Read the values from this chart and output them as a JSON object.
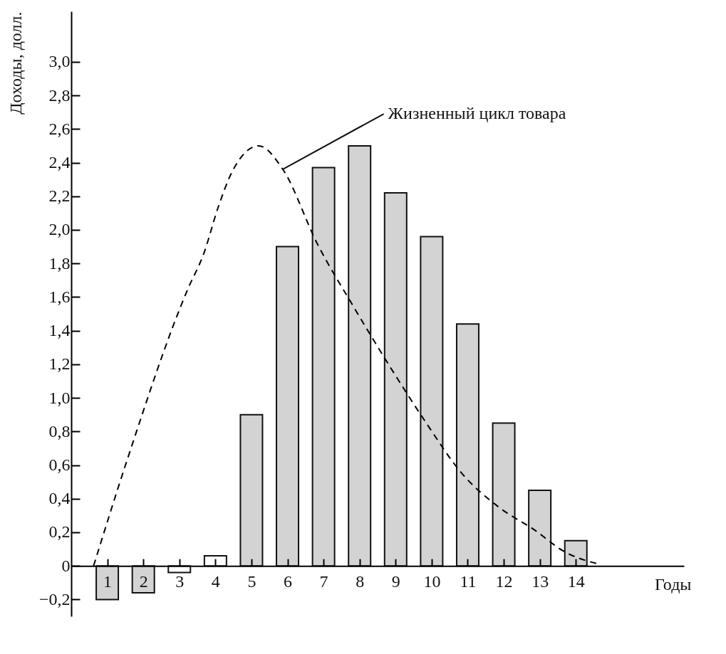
{
  "chart_data": {
    "type": "bar",
    "ylabel": "Доходы, долл.",
    "xlabel": "Годы",
    "xlim": [
      0,
      17
    ],
    "xticks": [
      1,
      2,
      3,
      4,
      5,
      6,
      7,
      8,
      9,
      10,
      11,
      12,
      13,
      14
    ],
    "ylim": [
      -0.3,
      3.3
    ],
    "yticks": [
      {
        "value": -0.2,
        "label": "−0,2"
      },
      {
        "value": 0,
        "label": "0"
      },
      {
        "value": 0.2,
        "label": "0,2"
      },
      {
        "value": 0.4,
        "label": "0,4"
      },
      {
        "value": 0.6,
        "label": "0,6"
      },
      {
        "value": 0.8,
        "label": "0,8"
      },
      {
        "value": 1.0,
        "label": "1,0"
      },
      {
        "value": 1.2,
        "label": "1,2"
      },
      {
        "value": 1.4,
        "label": "1,4"
      },
      {
        "value": 1.6,
        "label": "1,6"
      },
      {
        "value": 1.8,
        "label": "1,8"
      },
      {
        "value": 2.0,
        "label": "2,0"
      },
      {
        "value": 2.2,
        "label": "2,2"
      },
      {
        "value": 2.4,
        "label": "2,4"
      },
      {
        "value": 2.6,
        "label": "2,6"
      },
      {
        "value": 2.8,
        "label": "2,8"
      },
      {
        "value": 3.0,
        "label": "3,0"
      }
    ],
    "series": [
      {
        "x": [
          1,
          2,
          3,
          4,
          5,
          6,
          7,
          8,
          9,
          10,
          11,
          12,
          13,
          14
        ],
        "values": [
          -0.2,
          -0.16,
          -0.04,
          0.06,
          0.9,
          1.9,
          2.37,
          2.5,
          2.22,
          1.96,
          1.44,
          0.85,
          0.45,
          0.15
        ],
        "colors": [
          "#d3d3d3",
          "#d3d3d3",
          "#ffffff",
          "#ffffff",
          "#d3d3d3",
          "#d3d3d3",
          "#d3d3d3",
          "#d3d3d3",
          "#d3d3d3",
          "#d3d3d3",
          "#d3d3d3",
          "#d3d3d3",
          "#d3d3d3",
          "#d3d3d3"
        ]
      },
      {
        "type": "line",
        "color": "#000000",
        "line_style": "dashed",
        "x": [
          0.62,
          1.52,
          3.24,
          3.68,
          4.07,
          4.45,
          5.2,
          5.87,
          6.82,
          7.84,
          8.83,
          9.82,
          10.84,
          11.86,
          12.88,
          13.64,
          14.64
        ],
        "values": [
          0,
          0.61,
          1.65,
          1.86,
          2.13,
          2.34,
          2.5,
          2.36,
          1.92,
          1.54,
          1.19,
          0.86,
          0.55,
          0.35,
          0.21,
          0.09,
          0.01
        ]
      }
    ],
    "annotations": [
      {
        "text": "Жизненный цикл товара",
        "x": 5.87,
        "y": 2.36
      }
    ]
  }
}
